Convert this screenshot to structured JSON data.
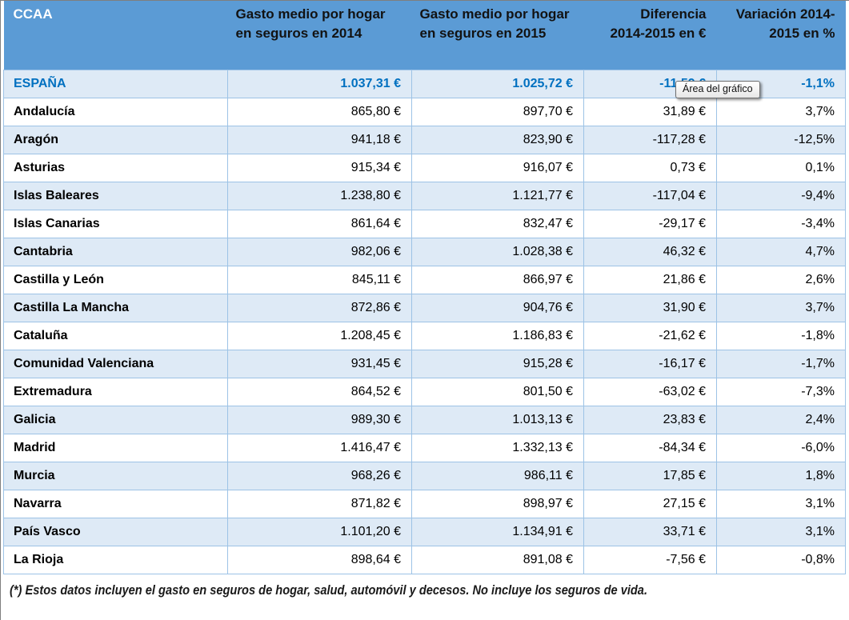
{
  "header": {
    "columns": [
      {
        "id": "ccaa",
        "lines": [
          "CCAA",
          ""
        ]
      },
      {
        "id": "gasto_2014",
        "lines": [
          "Gasto medio por hogar",
          "en seguros en 2014"
        ]
      },
      {
        "id": "gasto_2015",
        "lines": [
          "Gasto medio por hogar",
          "en seguros en 2015"
        ]
      },
      {
        "id": "diferencia",
        "lines": [
          "Diferencia",
          "2014-2015 en €"
        ]
      },
      {
        "id": "variacion",
        "lines": [
          "Variación 2014-",
          "2015 en %"
        ]
      }
    ]
  },
  "rows": [
    {
      "ccaa": "ESPAÑA",
      "gasto_2014": "1.037,31 €",
      "gasto_2015": "1.025,72 €",
      "diferencia": "-11,59 €",
      "variacion": "-1,1%",
      "is_total": true
    },
    {
      "ccaa": "Andalucía",
      "gasto_2014": "865,80 €",
      "gasto_2015": "897,70 €",
      "diferencia": "31,89 €",
      "variacion": "3,7%",
      "is_total": false
    },
    {
      "ccaa": "Aragón",
      "gasto_2014": "941,18 €",
      "gasto_2015": "823,90 €",
      "diferencia": "-117,28 €",
      "variacion": "-12,5%",
      "is_total": false
    },
    {
      "ccaa": "Asturias",
      "gasto_2014": "915,34 €",
      "gasto_2015": "916,07 €",
      "diferencia": "0,73 €",
      "variacion": "0,1%",
      "is_total": false
    },
    {
      "ccaa": "Islas Baleares",
      "gasto_2014": "1.238,80 €",
      "gasto_2015": "1.121,77 €",
      "diferencia": "-117,04 €",
      "variacion": "-9,4%",
      "is_total": false
    },
    {
      "ccaa": "Islas Canarias",
      "gasto_2014": "861,64 €",
      "gasto_2015": "832,47 €",
      "diferencia": "-29,17 €",
      "variacion": "-3,4%",
      "is_total": false
    },
    {
      "ccaa": "Cantabria",
      "gasto_2014": "982,06 €",
      "gasto_2015": "1.028,38 €",
      "diferencia": "46,32 €",
      "variacion": "4,7%",
      "is_total": false
    },
    {
      "ccaa": "Castilla y León",
      "gasto_2014": "845,11 €",
      "gasto_2015": "866,97 €",
      "diferencia": "21,86 €",
      "variacion": "2,6%",
      "is_total": false
    },
    {
      "ccaa": "Castilla La Mancha",
      "gasto_2014": "872,86 €",
      "gasto_2015": "904,76 €",
      "diferencia": "31,90 €",
      "variacion": "3,7%",
      "is_total": false
    },
    {
      "ccaa": "Cataluña",
      "gasto_2014": "1.208,45 €",
      "gasto_2015": "1.186,83 €",
      "diferencia": "-21,62 €",
      "variacion": "-1,8%",
      "is_total": false
    },
    {
      "ccaa": "Comunidad Valenciana",
      "gasto_2014": "931,45 €",
      "gasto_2015": "915,28 €",
      "diferencia": "-16,17 €",
      "variacion": "-1,7%",
      "is_total": false
    },
    {
      "ccaa": "Extremadura",
      "gasto_2014": "864,52 €",
      "gasto_2015": "801,50 €",
      "diferencia": "-63,02 €",
      "variacion": "-7,3%",
      "is_total": false
    },
    {
      "ccaa": "Galicia",
      "gasto_2014": "989,30 €",
      "gasto_2015": "1.013,13 €",
      "diferencia": "23,83 €",
      "variacion": "2,4%",
      "is_total": false
    },
    {
      "ccaa": "Madrid",
      "gasto_2014": "1.416,47 €",
      "gasto_2015": "1.332,13 €",
      "diferencia": "-84,34 €",
      "variacion": "-6,0%",
      "is_total": false
    },
    {
      "ccaa": "Murcia",
      "gasto_2014": "968,26 €",
      "gasto_2015": "986,11 €",
      "diferencia": "17,85 €",
      "variacion": "1,8%",
      "is_total": false
    },
    {
      "ccaa": "Navarra",
      "gasto_2014": "871,82 €",
      "gasto_2015": "898,97 €",
      "diferencia": "27,15 €",
      "variacion": "3,1%",
      "is_total": false
    },
    {
      "ccaa": "País Vasco",
      "gasto_2014": "1.101,20 €",
      "gasto_2015": "1.134,91 €",
      "diferencia": "33,71 €",
      "variacion": "3,1%",
      "is_total": false
    },
    {
      "ccaa": "La Rioja",
      "gasto_2014": "898,64 €",
      "gasto_2015": "891,08 €",
      "diferencia": "-7,56 €",
      "variacion": "-0,8%",
      "is_total": false
    }
  ],
  "tooltip": {
    "text": "Área del gráfico"
  },
  "footnote": "(*) Estos datos incluyen el gasto en seguros de hogar, salud, automóvil y decesos. No incluye los seguros de vida.",
  "colors": {
    "header_bg": "#5B9BD5",
    "stripe_bg": "#DEEAF6",
    "border": "#9DC3E6",
    "total_text": "#0070C0",
    "header_text": "#121212",
    "tooltip_border": "#6F6F6F"
  }
}
